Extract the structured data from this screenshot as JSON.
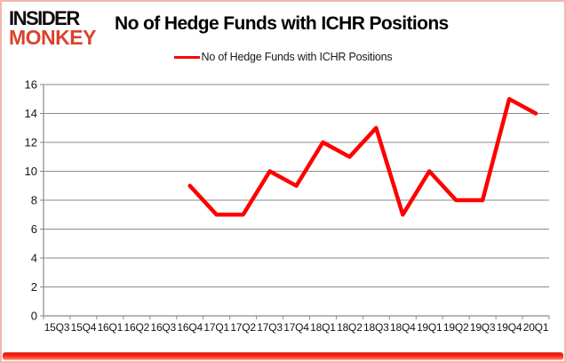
{
  "logo": {
    "line1": "INSIDER",
    "line2": "MONKEY"
  },
  "header": {
    "title": "No of Hedge Funds with ICHR Positions"
  },
  "legend": {
    "label": "No of Hedge Funds with ICHR Positions"
  },
  "colors": {
    "line": "#fe0000",
    "logo_red": "#d9432c",
    "grid": "#8a8a8a",
    "border_pink": "#f2b6ae",
    "bottom_bar_red": "#fa2111",
    "text": "#151515"
  },
  "chart_data": {
    "type": "line",
    "title": "No of Hedge Funds with ICHR Positions",
    "categories": [
      "15Q3",
      "15Q4",
      "16Q1",
      "16Q2",
      "16Q3",
      "16Q4",
      "17Q1",
      "17Q2",
      "17Q3",
      "17Q4",
      "18Q1",
      "18Q2",
      "18Q3",
      "18Q4",
      "19Q1",
      "19Q2",
      "19Q3",
      "19Q4",
      "20Q1"
    ],
    "series": [
      {
        "name": "No of Hedge Funds with ICHR Positions",
        "values": [
          null,
          null,
          null,
          null,
          null,
          9,
          7,
          7,
          10,
          9,
          12,
          11,
          13,
          7,
          10,
          8,
          8,
          15,
          14
        ]
      }
    ],
    "ylim": [
      0,
      16
    ],
    "ytick_step": 2,
    "grid": true,
    "legend_position": "top"
  }
}
